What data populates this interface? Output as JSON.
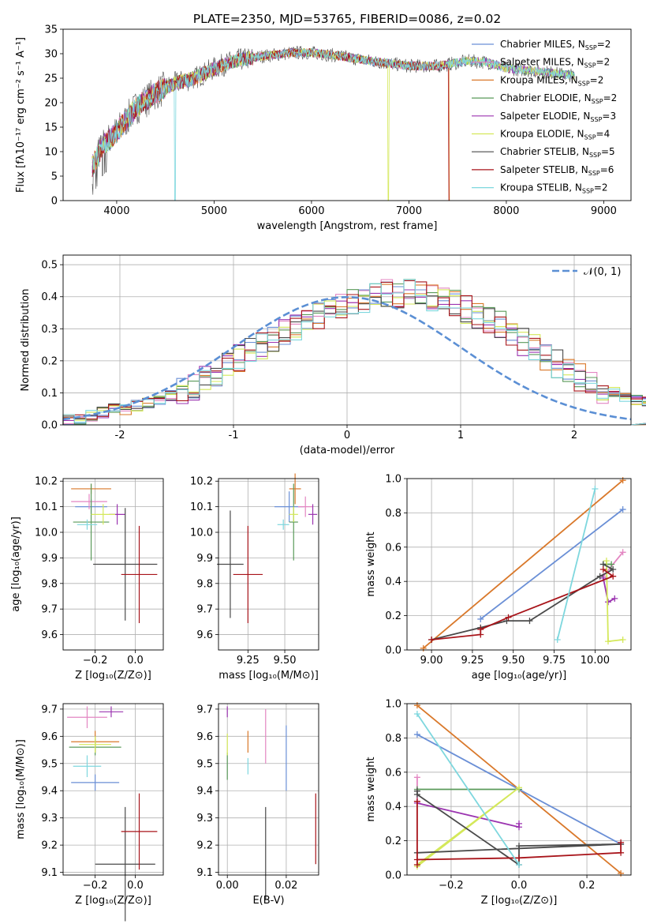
{
  "chart_data": [
    {
      "id": "spectrum",
      "type": "line",
      "title": "PLATE=2350, MJD=53765, FIBERID=0086, z=0.02",
      "xlabel": "wavelength [Angstrom, rest frame]",
      "ylabel": "Flux [fλ10⁻¹⁷ erg cm⁻² s⁻¹ A⁻¹]",
      "xlim": [
        3450,
        9280
      ],
      "ylim": [
        0,
        35
      ],
      "xticks": [
        4000,
        5000,
        6000,
        7000,
        8000,
        9000
      ],
      "yticks": [
        0,
        5,
        10,
        15,
        20,
        25,
        30,
        35
      ],
      "grid": false,
      "legend_position": "top-right",
      "continuum": [
        [
          3750,
          7
        ],
        [
          3850,
          11
        ],
        [
          4000,
          14
        ],
        [
          4200,
          19
        ],
        [
          4400,
          22
        ],
        [
          4600,
          24
        ],
        [
          4800,
          25
        ],
        [
          5000,
          27
        ],
        [
          5200,
          28.5
        ],
        [
          5500,
          29.5
        ],
        [
          5800,
          30.2
        ],
        [
          6000,
          30.2
        ],
        [
          6300,
          29.5
        ],
        [
          6600,
          28.5
        ],
        [
          7000,
          27.5
        ],
        [
          7300,
          27.5
        ],
        [
          7600,
          28.5
        ],
        [
          7800,
          28.3
        ],
        [
          8000,
          27
        ],
        [
          8300,
          26.5
        ],
        [
          8700,
          25.5
        ]
      ],
      "dips": [
        [
          4600,
          0
        ],
        [
          6790,
          0
        ],
        [
          7420,
          0
        ]
      ],
      "series": [
        {
          "name": "Chabrier MILES, N_SSP=2",
          "label_main": "Chabrier MILES, N",
          "label_sub": "SSP",
          "label_tail": "=2",
          "color": "#6a8fd6"
        },
        {
          "name": "Salpeter MILES, N_SSP=2",
          "label_main": "Salpeter MILES, N",
          "label_sub": "SSP",
          "label_tail": "=2",
          "color": "#e386c2"
        },
        {
          "name": "Kroupa MILES, N_SSP=2",
          "label_main": "Kroupa MILES, N",
          "label_sub": "SSP",
          "label_tail": "=2",
          "color": "#d9782a"
        },
        {
          "name": "Chabrier ELODIE, N_SSP=2",
          "label_main": "Chabrier ELODIE, N",
          "label_sub": "SSP",
          "label_tail": "=2",
          "color": "#5a9a5a"
        },
        {
          "name": "Salpeter ELODIE, N_SSP=3",
          "label_main": "Salpeter ELODIE, N",
          "label_sub": "SSP",
          "label_tail": "=3",
          "color": "#9b34b0"
        },
        {
          "name": "Kroupa ELODIE, N_SSP=4",
          "label_main": "Kroupa ELODIE, N",
          "label_sub": "SSP",
          "label_tail": "=4",
          "color": "#d4e85a"
        },
        {
          "name": "Chabrier STELIB, N_SSP=5",
          "label_main": "Chabrier STELIB, N",
          "label_sub": "SSP",
          "label_tail": "=5",
          "color": "#4a4a4a"
        },
        {
          "name": "Salpeter STELIB, N_SSP=6",
          "label_main": "Salpeter STELIB, N",
          "label_sub": "SSP",
          "label_tail": "=6",
          "color": "#a8141a"
        },
        {
          "name": "Kroupa STELIB, N_SSP=2",
          "label_main": "Kroupa STELIB, N",
          "label_sub": "SSP",
          "label_tail": "=2",
          "color": "#7ed7de"
        }
      ]
    },
    {
      "id": "residuals",
      "type": "histogram",
      "xlabel": "(data-model)/error",
      "ylabel": "Normed distribution",
      "xlim": [
        -2.5,
        2.5
      ],
      "ylim": [
        0,
        0.53
      ],
      "xticks": [
        -2,
        -1,
        0,
        1,
        2
      ],
      "yticks": [
        0.0,
        0.1,
        0.2,
        0.3,
        0.4,
        0.5
      ],
      "grid": true,
      "legend_position": "top-right",
      "legend_label": "𝒩(0, 1)",
      "normal_curve": {
        "mean": 0,
        "sigma": 1,
        "color": "#5b8fd4"
      },
      "bin_width": 0.1,
      "bin_start": -2.5,
      "heights": [
        0.02,
        0.02,
        0.03,
        0.04,
        0.05,
        0.05,
        0.06,
        0.07,
        0.08,
        0.09,
        0.11,
        0.12,
        0.14,
        0.16,
        0.18,
        0.21,
        0.23,
        0.25,
        0.27,
        0.29,
        0.3,
        0.32,
        0.34,
        0.36,
        0.37,
        0.38,
        0.39,
        0.4,
        0.41,
        0.41,
        0.42,
        0.41,
        0.4,
        0.39,
        0.38,
        0.36,
        0.34,
        0.33,
        0.31,
        0.28,
        0.26,
        0.24,
        0.21,
        0.19,
        0.17,
        0.15,
        0.13,
        0.11,
        0.1,
        0.09,
        0.08,
        0.07,
        0.06,
        0.05,
        0.04,
        0.04,
        0.03,
        0.03,
        0.02,
        0.02
      ]
    },
    {
      "id": "age_vs_Z",
      "type": "scatter",
      "xlabel": "Z [log₁₀(Z/Z⊙)]",
      "ylabel": "age  [log₁₀(age/yr)]",
      "xlim": [
        -0.36,
        0.14
      ],
      "ylim": [
        9.54,
        10.21
      ],
      "xticks": [
        -0.2,
        0.0
      ],
      "xtick_labels": [
        "−0.2",
        "0.0"
      ],
      "yticks": [
        9.6,
        9.7,
        9.8,
        9.9,
        10.0,
        10.1,
        10.2
      ],
      "ytick_labels": [
        "9.6",
        "9.7",
        "9.8",
        "9.9",
        "10.0",
        "10.1",
        "10.2"
      ],
      "grid": true,
      "points": [
        {
          "x": -0.22,
          "xerr": 0.08,
          "y": 10.1,
          "yerr": 0.03,
          "color": "#6a8fd6"
        },
        {
          "x": -0.23,
          "xerr": 0.09,
          "y": 10.12,
          "yerr": 0.03,
          "color": "#e386c2"
        },
        {
          "x": -0.22,
          "xerr": 0.1,
          "y": 10.17,
          "yerr": 0.02,
          "color": "#d9782a"
        },
        {
          "x": -0.22,
          "xerr": 0.09,
          "y": 10.04,
          "yerr": 0.15,
          "color": "#5a9a5a"
        },
        {
          "x": -0.09,
          "xerr": 0.04,
          "y": 10.07,
          "yerr": 0.04,
          "color": "#9b34b0"
        },
        {
          "x": -0.16,
          "xerr": 0.06,
          "y": 10.07,
          "yerr": 0.04,
          "color": "#d4e85a"
        },
        {
          "x": -0.05,
          "xerr": 0.16,
          "y": 9.875,
          "yerr": 0.22,
          "color": "#4a4a4a"
        },
        {
          "x": 0.02,
          "xerr": 0.09,
          "y": 9.835,
          "yerr": 0.19,
          "color": "#a8141a"
        },
        {
          "x": -0.24,
          "xerr": 0.05,
          "y": 10.03,
          "yerr": 0.02,
          "color": "#7ed7de"
        }
      ]
    },
    {
      "id": "age_vs_mass",
      "type": "scatter",
      "xlabel": "mass [log₁₀(M/M⊙)]",
      "ylabel": "",
      "xlim": [
        9.05,
        9.73
      ],
      "ylim": [
        9.54,
        10.21
      ],
      "xticks": [
        9.25,
        9.5
      ],
      "xtick_labels": [
        "9.25",
        "9.50"
      ],
      "yticks": [
        9.6,
        9.7,
        9.8,
        9.9,
        10.0,
        10.1,
        10.2
      ],
      "ytick_labels": [
        "9.6",
        "9.7",
        "9.8",
        "9.9",
        "10.0",
        "10.1",
        "10.2"
      ],
      "grid": true,
      "points": [
        {
          "x": 9.53,
          "xerr": 0.1,
          "y": 10.1,
          "yerr": 0.06,
          "color": "#6a8fd6"
        },
        {
          "x": 9.64,
          "xerr": 0.05,
          "y": 10.1,
          "yerr": 0.04,
          "color": "#e386c2"
        },
        {
          "x": 9.57,
          "xerr": 0.04,
          "y": 10.17,
          "yerr": 0.06,
          "color": "#d9782a"
        },
        {
          "x": 9.56,
          "xerr": 0.03,
          "y": 10.04,
          "yerr": 0.15,
          "color": "#5a9a5a"
        },
        {
          "x": 9.69,
          "xerr": 0.03,
          "y": 10.07,
          "yerr": 0.04,
          "color": "#9b34b0"
        },
        {
          "x": 9.56,
          "xerr": 0.03,
          "y": 10.07,
          "yerr": 0.03,
          "color": "#d4e85a"
        },
        {
          "x": 9.13,
          "xerr": 0.09,
          "y": 9.875,
          "yerr": 0.21,
          "color": "#4a4a4a"
        },
        {
          "x": 9.25,
          "xerr": 0.1,
          "y": 9.835,
          "yerr": 0.19,
          "color": "#a8141a"
        },
        {
          "x": 9.49,
          "xerr": 0.04,
          "y": 10.03,
          "yerr": 0.02,
          "color": "#7ed7de"
        }
      ]
    },
    {
      "id": "massweight_vs_age",
      "type": "line",
      "xlabel": "age  [log₁₀(age/yr)]",
      "ylabel": "mass weight",
      "xlim": [
        8.85,
        10.22
      ],
      "ylim": [
        0,
        1
      ],
      "xticks": [
        9.0,
        9.25,
        9.5,
        9.75,
        10.0
      ],
      "xtick_labels": [
        "9.00",
        "9.25",
        "9.50",
        "9.75",
        "10.00"
      ],
      "yticks": [
        0.0,
        0.2,
        0.4,
        0.6,
        0.8,
        1.0
      ],
      "ytick_labels": [
        "0.0",
        "0.2",
        "0.4",
        "0.6",
        "0.8",
        "1.0"
      ],
      "grid": true,
      "series": [
        {
          "color": "#d9782a",
          "points": [
            [
              8.95,
              0.01
            ],
            [
              10.17,
              0.99
            ]
          ]
        },
        {
          "color": "#6a8fd6",
          "points": [
            [
              9.3,
              0.18
            ],
            [
              10.17,
              0.82
            ]
          ]
        },
        {
          "color": "#e386c2",
          "points": [
            [
              10.05,
              0.43
            ],
            [
              10.17,
              0.57
            ]
          ]
        },
        {
          "color": "#5a9a5a",
          "points": [
            [
              10.05,
              0.5
            ],
            [
              10.1,
              0.5
            ]
          ]
        },
        {
          "color": "#9b34b0",
          "points": [
            [
              10.05,
              0.42
            ],
            [
              10.08,
              0.28
            ],
            [
              10.12,
              0.3
            ]
          ]
        },
        {
          "color": "#d4e85a",
          "points": [
            [
              10.07,
              0.52
            ],
            [
              10.08,
              0.05
            ],
            [
              10.17,
              0.06
            ]
          ]
        },
        {
          "color": "#4a4a4a",
          "points": [
            [
              9.0,
              0.06
            ],
            [
              9.3,
              0.13
            ],
            [
              9.46,
              0.17
            ],
            [
              9.6,
              0.17
            ],
            [
              10.03,
              0.43
            ],
            [
              10.11,
              0.47
            ],
            [
              10.05,
              0.5
            ]
          ]
        },
        {
          "color": "#a8141a",
          "points": [
            [
              9.0,
              0.06
            ],
            [
              9.3,
              0.09
            ],
            [
              9.3,
              0.12
            ],
            [
              9.47,
              0.19
            ],
            [
              10.11,
              0.43
            ],
            [
              10.05,
              0.47
            ]
          ]
        },
        {
          "color": "#7ed7de",
          "points": [
            [
              9.77,
              0.06
            ],
            [
              10.0,
              0.94
            ]
          ]
        }
      ]
    },
    {
      "id": "mass_vs_Z",
      "type": "scatter",
      "xlabel": "Z [log₁₀(Z/Z⊙)]",
      "ylabel": "mass [log₁₀(M/M⊙)]",
      "xlim": [
        -0.36,
        0.14
      ],
      "ylim": [
        9.09,
        9.72
      ],
      "xticks": [
        -0.2,
        0.0
      ],
      "xtick_labels": [
        "−0.2",
        "0.0"
      ],
      "yticks": [
        9.1,
        9.2,
        9.3,
        9.4,
        9.5,
        9.6,
        9.7
      ],
      "ytick_labels": [
        "9.1",
        "9.2",
        "9.3",
        "9.4",
        "9.5",
        "9.6",
        "9.7"
      ],
      "grid": true,
      "points": [
        {
          "x": -0.2,
          "xerr": 0.12,
          "y": 9.43,
          "yerr": 0.03,
          "color": "#6a8fd6"
        },
        {
          "x": -0.24,
          "xerr": 0.1,
          "y": 9.67,
          "yerr": 0.04,
          "color": "#e386c2"
        },
        {
          "x": -0.2,
          "xerr": 0.12,
          "y": 9.58,
          "yerr": 0.04,
          "color": "#d9782a"
        },
        {
          "x": -0.2,
          "xerr": 0.13,
          "y": 9.56,
          "yerr": 0.03,
          "color": "#5a9a5a"
        },
        {
          "x": -0.12,
          "xerr": 0.06,
          "y": 9.69,
          "yerr": 0.02,
          "color": "#9b34b0"
        },
        {
          "x": -0.2,
          "xerr": 0.08,
          "y": 9.57,
          "yerr": 0.03,
          "color": "#d4e85a"
        },
        {
          "x": -0.05,
          "xerr": 0.15,
          "y": 9.13,
          "yerr": 0.21,
          "color": "#4a4a4a"
        },
        {
          "x": 0.02,
          "xerr": 0.09,
          "y": 9.25,
          "yerr": 0.14,
          "color": "#a8141a"
        },
        {
          "x": -0.24,
          "xerr": 0.07,
          "y": 9.49,
          "yerr": 0.04,
          "color": "#7ed7de"
        }
      ]
    },
    {
      "id": "mass_vs_ebv",
      "type": "scatter",
      "xlabel": "E(B-V)",
      "ylabel": "",
      "xlim": [
        -0.003,
        0.031
      ],
      "ylim": [
        9.09,
        9.72
      ],
      "xticks": [
        0.0,
        0.02
      ],
      "xtick_labels": [
        "0.00",
        "0.02"
      ],
      "yticks": [
        9.1,
        9.2,
        9.3,
        9.4,
        9.5,
        9.6,
        9.7
      ],
      "ytick_labels": [
        "9.1",
        "9.2",
        "9.3",
        "9.4",
        "9.5",
        "9.6",
        "9.7"
      ],
      "grid": true,
      "points": [
        {
          "x": 0.02,
          "xerr": 0,
          "y": 9.52,
          "yerr": 0.12,
          "color": "#6a8fd6"
        },
        {
          "x": 0.013,
          "xerr": 0,
          "y": 9.6,
          "yerr": 0.1,
          "color": "#e386c2"
        },
        {
          "x": 0.007,
          "xerr": 0,
          "y": 9.58,
          "yerr": 0.04,
          "color": "#d9782a"
        },
        {
          "x": 0.0,
          "xerr": 0,
          "y": 9.49,
          "yerr": 0.05,
          "color": "#5a9a5a"
        },
        {
          "x": 0.0,
          "xerr": 0,
          "y": 9.69,
          "yerr": 0.02,
          "color": "#9b34b0"
        },
        {
          "x": 0.0,
          "xerr": 0,
          "y": 9.57,
          "yerr": 0.04,
          "color": "#d4e85a"
        },
        {
          "x": 0.013,
          "xerr": 0,
          "y": 9.17,
          "yerr": 0.17,
          "color": "#4a4a4a"
        },
        {
          "x": 0.03,
          "xerr": 0,
          "y": 9.26,
          "yerr": 0.13,
          "color": "#a8141a"
        },
        {
          "x": 0.007,
          "xerr": 0,
          "y": 9.49,
          "yerr": 0.03,
          "color": "#7ed7de"
        }
      ]
    },
    {
      "id": "massweight_vs_Z",
      "type": "line",
      "xlabel": "Z [log₁₀(Z/Z⊙)]",
      "ylabel": "mass weight",
      "xlim": [
        -0.33,
        0.33
      ],
      "ylim": [
        0,
        1
      ],
      "xticks": [
        -0.2,
        0.0,
        0.2
      ],
      "xtick_labels": [
        "−0.2",
        "0.0",
        "0.2"
      ],
      "yticks": [
        0.0,
        0.2,
        0.4,
        0.6,
        0.8,
        1.0
      ],
      "ytick_labels": [
        "0.0",
        "0.2",
        "0.4",
        "0.6",
        "0.8",
        "1.0"
      ],
      "grid": true,
      "series": [
        {
          "color": "#d9782a",
          "points": [
            [
              -0.3,
              0.99
            ],
            [
              0.3,
              0.01
            ]
          ]
        },
        {
          "color": "#6a8fd6",
          "points": [
            [
              -0.3,
              0.82
            ],
            [
              0.3,
              0.18
            ]
          ]
        },
        {
          "color": "#e386c2",
          "points": [
            [
              -0.3,
              0.57
            ],
            [
              -0.3,
              0.43
            ]
          ]
        },
        {
          "color": "#5a9a5a",
          "points": [
            [
              -0.3,
              0.5
            ],
            [
              0.0,
              0.5
            ]
          ]
        },
        {
          "color": "#9b34b0",
          "points": [
            [
              -0.3,
              0.42
            ],
            [
              0.0,
              0.28
            ],
            [
              0.0,
              0.3
            ]
          ]
        },
        {
          "color": "#d4e85a",
          "points": [
            [
              -0.3,
              0.05
            ],
            [
              0.0,
              0.51
            ],
            [
              -0.3,
              0.06
            ]
          ]
        },
        {
          "color": "#4a4a4a",
          "points": [
            [
              -0.3,
              0.49
            ],
            [
              -0.3,
              0.47
            ],
            [
              0.0,
              0.06
            ],
            [
              0.0,
              0.17
            ],
            [
              0.3,
              0.18
            ],
            [
              -0.3,
              0.13
            ]
          ]
        },
        {
          "color": "#a8141a",
          "points": [
            [
              -0.3,
              0.43
            ],
            [
              -0.3,
              0.06
            ],
            [
              -0.3,
              0.09
            ],
            [
              0.0,
              0.1
            ],
            [
              0.3,
              0.13
            ],
            [
              0.3,
              0.19
            ]
          ]
        },
        {
          "color": "#7ed7de",
          "points": [
            [
              -0.3,
              0.94
            ],
            [
              0.0,
              0.06
            ]
          ]
        }
      ]
    }
  ]
}
